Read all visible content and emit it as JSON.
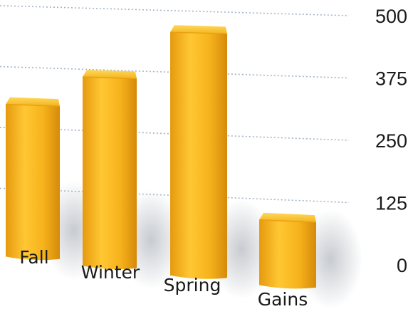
{
  "chart_data": {
    "type": "bar",
    "title": "",
    "xlabel": "",
    "ylabel": "",
    "categories": [
      "Fall",
      "Winter",
      "Spring",
      "Gains"
    ],
    "values": [
      330,
      390,
      485,
      110
    ],
    "ylim": [
      0,
      500
    ],
    "y_ticks": [
      "0",
      "125",
      "250",
      "375",
      "500"
    ],
    "y_axis_side": "right",
    "grid": true,
    "legend": "none",
    "three_d": true,
    "colors": {
      "bar": "#F2B21A",
      "bar_light": "#FFD24A",
      "bar_dark": "#D98F0C",
      "bar_top": "#FFC93A",
      "grid": "#8FA0B8"
    }
  }
}
